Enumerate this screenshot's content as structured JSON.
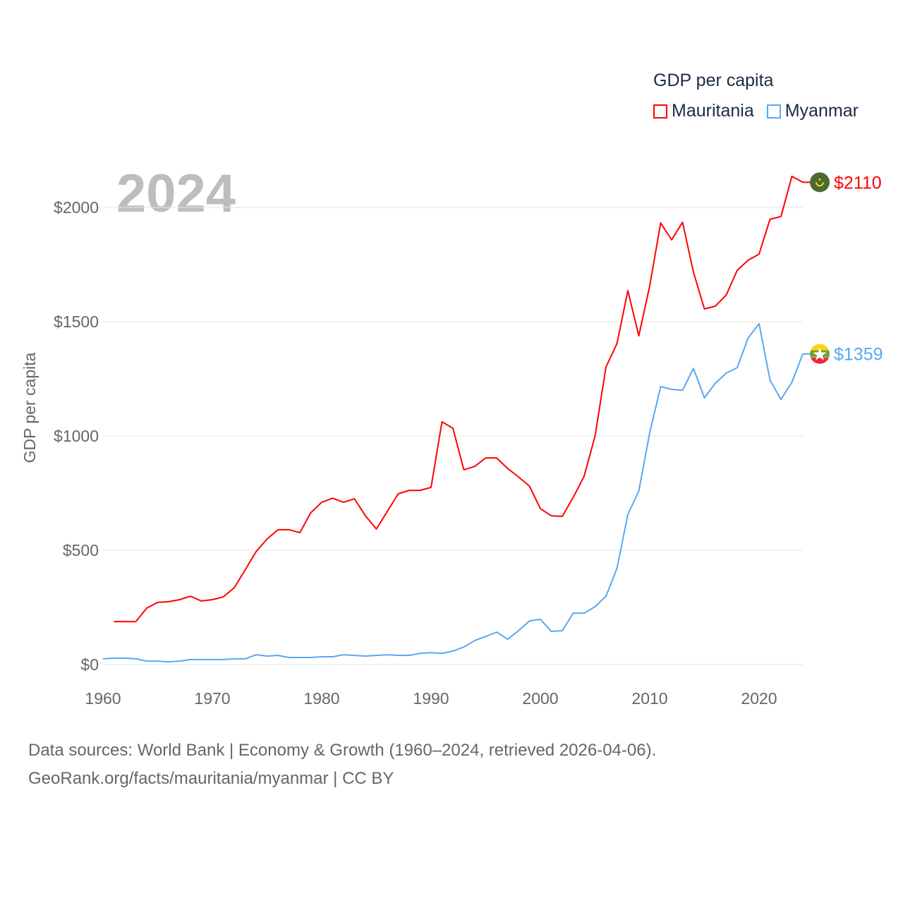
{
  "chart_data": {
    "type": "line",
    "title": "GDP per capita",
    "ylabel": "GDP per capita",
    "xlabel": "",
    "year_label": "2024",
    "xlim": [
      1960,
      2024
    ],
    "ylim": [
      0,
      2200
    ],
    "x_ticks": [
      1960,
      1970,
      1980,
      1990,
      2000,
      2010,
      2020
    ],
    "y_ticks": [
      0,
      500,
      1000,
      1500,
      2000
    ],
    "y_tick_labels": [
      "$0",
      "$500",
      "$1000",
      "$1500",
      "$2000"
    ],
    "grid": true,
    "legend_position": "top-right",
    "series": [
      {
        "name": "Mauritania",
        "color": "#ff0000",
        "end_label": "$2110",
        "start_year": 1961,
        "values": [
          188,
          188,
          188,
          247,
          272,
          275,
          284,
          299,
          278,
          284,
          296,
          336,
          414,
          494,
          549,
          590,
          590,
          577,
          664,
          710,
          728,
          710,
          725,
          651,
          593,
          670,
          747,
          762,
          762,
          775,
          1062,
          1034,
          852,
          867,
          904,
          904,
          858,
          821,
          781,
          682,
          651,
          648,
          731,
          824,
          1000,
          1302,
          1404,
          1636,
          1438,
          1657,
          1932,
          1858,
          1935,
          1716,
          1556,
          1568,
          1617,
          1725,
          1769,
          1796,
          1948,
          1960,
          2136,
          2110
        ]
      },
      {
        "name": "Myanmar",
        "color": "#5ba7ee",
        "end_label": "$1359",
        "start_year": 1960,
        "values": [
          25,
          28,
          28,
          25,
          15,
          15,
          12,
          15,
          22,
          22,
          22,
          22,
          25,
          25,
          43,
          37,
          40,
          31,
          31,
          31,
          34,
          34,
          43,
          40,
          37,
          40,
          43,
          40,
          40,
          49,
          52,
          49,
          59,
          77,
          105,
          123,
          142,
          111,
          148,
          191,
          198,
          145,
          148,
          225,
          225,
          253,
          299,
          420,
          657,
          759,
          1015,
          1216,
          1204,
          1200,
          1296,
          1167,
          1231,
          1275,
          1299,
          1429,
          1491,
          1244,
          1160,
          1235,
          1359
        ]
      }
    ]
  },
  "footer": {
    "line1": "Data sources: World Bank | Economy & Growth (1960–2024, retrieved 2026-04-06).",
    "line2": "GeoRank.org/facts/mauritania/myanmar | CC BY"
  }
}
